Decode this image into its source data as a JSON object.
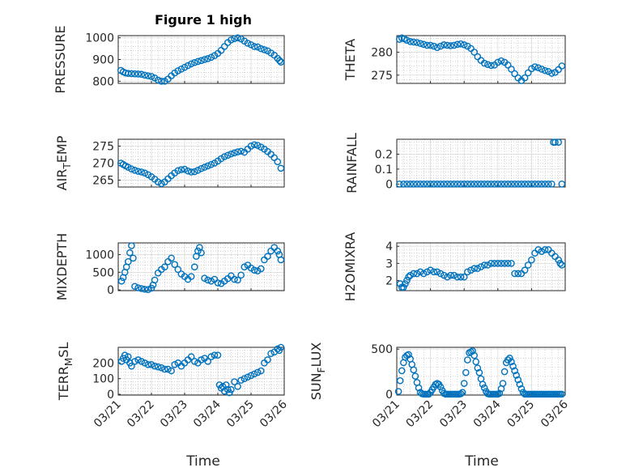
{
  "figure": {
    "title": "Figure 1 high",
    "marker_color": "#0072BD",
    "x_axis_label": "Time",
    "x_tick_labels": [
      "03/21",
      "03/22",
      "03/23",
      "03/24",
      "03/25",
      "03/26"
    ]
  },
  "chart_data": [
    {
      "type": "scatter",
      "ylabel": "PRESSURE",
      "ylim": [
        790,
        1010
      ],
      "yticks": [
        800,
        900,
        1000
      ],
      "xlim": [
        0,
        5
      ],
      "grid": "on",
      "x": [
        0.08,
        0.15,
        0.22,
        0.3,
        0.4,
        0.5,
        0.6,
        0.7,
        0.8,
        0.9,
        1.0,
        1.1,
        1.2,
        1.3,
        1.4,
        1.5,
        1.6,
        1.7,
        1.8,
        1.9,
        2.0,
        2.1,
        2.2,
        2.3,
        2.4,
        2.5,
        2.6,
        2.7,
        2.8,
        2.9,
        3.0,
        3.1,
        3.2,
        3.3,
        3.4,
        3.5,
        3.6,
        3.7,
        3.8,
        3.9,
        4.0,
        4.1,
        4.2,
        4.3,
        4.4,
        4.5,
        4.6,
        4.7,
        4.8,
        4.86,
        4.9
      ],
      "y": [
        850,
        843,
        838,
        836,
        835,
        834,
        833,
        832,
        828,
        825,
        822,
        815,
        805,
        800,
        800,
        810,
        825,
        838,
        848,
        856,
        864,
        872,
        880,
        886,
        891,
        895,
        900,
        904,
        910,
        918,
        928,
        942,
        960,
        978,
        990,
        996,
        1000,
        995,
        985,
        975,
        968,
        960,
        958,
        950,
        945,
        940,
        930,
        920,
        905,
        895,
        888
      ]
    },
    {
      "type": "scatter",
      "ylabel": "THETA",
      "ylim": [
        273.2,
        283.6
      ],
      "yticks": [
        275,
        280
      ],
      "xlim": [
        0,
        5
      ],
      "grid": "on",
      "x": [
        0.08,
        0.15,
        0.22,
        0.3,
        0.4,
        0.5,
        0.6,
        0.7,
        0.8,
        0.9,
        1.0,
        1.1,
        1.2,
        1.3,
        1.4,
        1.5,
        1.6,
        1.7,
        1.8,
        1.9,
        2.0,
        2.1,
        2.2,
        2.3,
        2.4,
        2.5,
        2.6,
        2.7,
        2.8,
        2.9,
        3.0,
        3.1,
        3.2,
        3.3,
        3.4,
        3.5,
        3.6,
        3.7,
        3.8,
        3.9,
        4.0,
        4.1,
        4.2,
        4.3,
        4.4,
        4.5,
        4.6,
        4.7,
        4.8,
        4.9
      ],
      "y": [
        282.8,
        283.1,
        282.9,
        282.6,
        282.3,
        282.2,
        282.1,
        281.9,
        281.7,
        281.5,
        281.5,
        281.3,
        281.0,
        281.3,
        281.6,
        281.5,
        281.4,
        281.5,
        281.7,
        281.8,
        281.6,
        281.3,
        280.8,
        280.0,
        279.0,
        278.2,
        277.6,
        277.3,
        277.1,
        277.2,
        277.8,
        278.1,
        277.8,
        277.2,
        276.3,
        275.3,
        274.4,
        273.8,
        274.4,
        275.5,
        276.4,
        276.8,
        276.6,
        276.3,
        276.0,
        275.8,
        275.4,
        275.6,
        276.2,
        277.0
      ]
    },
    {
      "type": "scatter",
      "ylabel": "AIR_TEMP",
      "ylim": [
        263,
        277
      ],
      "yticks": [
        265,
        270,
        275
      ],
      "xlim": [
        0,
        5
      ],
      "grid": "on",
      "x": [
        0.08,
        0.15,
        0.22,
        0.3,
        0.4,
        0.5,
        0.6,
        0.7,
        0.8,
        0.9,
        1.0,
        1.1,
        1.2,
        1.3,
        1.4,
        1.5,
        1.6,
        1.7,
        1.8,
        1.9,
        2.0,
        2.1,
        2.2,
        2.3,
        2.4,
        2.5,
        2.6,
        2.7,
        2.8,
        2.9,
        3.0,
        3.1,
        3.2,
        3.3,
        3.4,
        3.5,
        3.6,
        3.7,
        3.8,
        3.9,
        4.0,
        4.1,
        4.2,
        4.3,
        4.4,
        4.5,
        4.6,
        4.7,
        4.8,
        4.9
      ],
      "y": [
        270.0,
        269.6,
        269.2,
        268.8,
        268.3,
        267.9,
        267.6,
        267.4,
        267.1,
        266.6,
        266.0,
        265.3,
        264.5,
        264.0,
        264.5,
        265.4,
        266.3,
        267.1,
        267.8,
        268.1,
        268.2,
        267.7,
        267.4,
        267.5,
        267.9,
        268.4,
        268.8,
        269.2,
        269.6,
        270.0,
        270.6,
        271.3,
        271.9,
        272.3,
        272.7,
        273.0,
        273.3,
        273.5,
        273.2,
        274.1,
        275.0,
        275.4,
        275.2,
        274.7,
        274.1,
        273.4,
        272.6,
        271.6,
        270.4,
        268.5
      ]
    },
    {
      "type": "scatter",
      "ylabel": "RAINFALL",
      "ylim": [
        -0.02,
        0.3
      ],
      "yticks": [
        0,
        0.1,
        0.2
      ],
      "ytick_labels": [
        "0",
        "0.1",
        "0.2"
      ],
      "xlim": [
        0,
        5
      ],
      "grid": "on",
      "x": [
        0.08,
        0.2,
        0.3,
        0.4,
        0.5,
        0.6,
        0.7,
        0.8,
        0.9,
        1.0,
        1.1,
        1.2,
        1.3,
        1.4,
        1.5,
        1.6,
        1.7,
        1.8,
        1.9,
        2.0,
        2.1,
        2.2,
        2.3,
        2.4,
        2.5,
        2.6,
        2.7,
        2.8,
        2.9,
        3.0,
        3.1,
        3.2,
        3.3,
        3.4,
        3.5,
        3.6,
        3.7,
        3.8,
        3.9,
        4.0,
        4.1,
        4.2,
        4.3,
        4.4,
        4.5,
        4.6,
        4.65,
        4.7,
        4.8,
        4.9
      ],
      "y": [
        0,
        0,
        0,
        0,
        0,
        0,
        0,
        0,
        0,
        0,
        0,
        0,
        0,
        0,
        0,
        0,
        0,
        0,
        0,
        0,
        0,
        0,
        0,
        0,
        0,
        0,
        0,
        0,
        0,
        0,
        0,
        0,
        0,
        0,
        0,
        0,
        0,
        0,
        0,
        0,
        0,
        0,
        0,
        0,
        0,
        0,
        0.28,
        0.28,
        0.28,
        0
      ]
    },
    {
      "type": "scatter",
      "ylabel": "MIXDEPTH",
      "ylim": [
        -20,
        1330
      ],
      "yticks": [
        0,
        500,
        1000
      ],
      "xlim": [
        0,
        5
      ],
      "grid": "on",
      "x": [
        0.1,
        0.15,
        0.2,
        0.25,
        0.3,
        0.35,
        0.4,
        0.45,
        0.5,
        0.6,
        0.7,
        0.8,
        0.9,
        1.0,
        1.05,
        1.1,
        1.2,
        1.3,
        1.4,
        1.5,
        1.6,
        1.7,
        1.8,
        1.9,
        2.0,
        2.1,
        2.2,
        2.3,
        2.35,
        2.4,
        2.45,
        2.5,
        2.6,
        2.7,
        2.8,
        2.9,
        3.0,
        3.1,
        3.2,
        3.3,
        3.4,
        3.5,
        3.6,
        3.7,
        3.8,
        3.9,
        4.0,
        4.1,
        4.2,
        4.3,
        4.4,
        4.5,
        4.6,
        4.7,
        4.8,
        4.85,
        4.9
      ],
      "y": [
        250,
        350,
        500,
        650,
        800,
        1050,
        1250,
        900,
        100,
        60,
        40,
        20,
        10,
        50,
        140,
        280,
        480,
        580,
        650,
        800,
        900,
        720,
        580,
        450,
        380,
        300,
        380,
        650,
        950,
        1100,
        1200,
        1050,
        330,
        280,
        250,
        300,
        200,
        180,
        250,
        320,
        400,
        300,
        280,
        420,
        650,
        700,
        620,
        560,
        540,
        600,
        850,
        950,
        1100,
        1200,
        1100,
        1000,
        850
      ]
    },
    {
      "type": "scatter",
      "ylabel": "H2OMIXRA",
      "ylim": [
        1.4,
        4.2
      ],
      "yticks": [
        2,
        3,
        4
      ],
      "xlim": [
        0,
        5
      ],
      "grid": "on",
      "x": [
        0.1,
        0.15,
        0.2,
        0.25,
        0.3,
        0.35,
        0.4,
        0.5,
        0.6,
        0.7,
        0.8,
        0.9,
        1.0,
        1.1,
        1.2,
        1.3,
        1.4,
        1.5,
        1.6,
        1.7,
        1.8,
        1.9,
        2.0,
        2.1,
        2.2,
        2.3,
        2.4,
        2.5,
        2.6,
        2.7,
        2.8,
        2.9,
        3.0,
        3.1,
        3.2,
        3.3,
        3.4,
        3.5,
        3.6,
        3.7,
        3.8,
        3.9,
        4.0,
        4.1,
        4.2,
        4.3,
        4.4,
        4.5,
        4.6,
        4.7,
        4.8,
        4.85,
        4.9
      ],
      "y": [
        1.8,
        1.6,
        1.6,
        1.8,
        2.0,
        2.2,
        2.3,
        2.4,
        2.4,
        2.5,
        2.4,
        2.5,
        2.6,
        2.5,
        2.5,
        2.4,
        2.3,
        2.2,
        2.3,
        2.3,
        2.2,
        2.2,
        2.2,
        2.5,
        2.6,
        2.7,
        2.7,
        2.8,
        2.9,
        2.9,
        3.0,
        3.0,
        3.0,
        3.0,
        3.0,
        3.0,
        3.0,
        2.4,
        2.4,
        2.4,
        2.6,
        2.9,
        3.2,
        3.6,
        3.8,
        3.7,
        3.8,
        3.8,
        3.6,
        3.4,
        3.2,
        3.0,
        2.9
      ]
    },
    {
      "type": "scatter",
      "ylabel": "TERR_MSL",
      "ylim": [
        -5,
        300
      ],
      "yticks": [
        0,
        100,
        200
      ],
      "xlim": [
        0,
        5
      ],
      "grid": "on",
      "x": [
        0.1,
        0.15,
        0.2,
        0.25,
        0.3,
        0.35,
        0.4,
        0.5,
        0.6,
        0.7,
        0.8,
        0.9,
        1.0,
        1.1,
        1.2,
        1.3,
        1.4,
        1.5,
        1.6,
        1.7,
        1.8,
        1.9,
        2.0,
        2.1,
        2.2,
        2.3,
        2.4,
        2.5,
        2.6,
        2.7,
        2.8,
        2.9,
        3.0,
        3.05,
        3.1,
        3.15,
        3.2,
        3.25,
        3.3,
        3.35,
        3.4,
        3.5,
        3.6,
        3.7,
        3.8,
        3.9,
        4.0,
        4.1,
        4.2,
        4.3,
        4.4,
        4.5,
        4.6,
        4.7,
        4.8,
        4.85,
        4.9
      ],
      "y": [
        210,
        230,
        250,
        220,
        240,
        200,
        180,
        210,
        220,
        210,
        200,
        190,
        190,
        180,
        175,
        170,
        160,
        160,
        150,
        190,
        200,
        180,
        200,
        220,
        240,
        210,
        200,
        220,
        230,
        210,
        240,
        250,
        250,
        60,
        40,
        50,
        20,
        60,
        30,
        10,
        30,
        80,
        50,
        90,
        100,
        110,
        120,
        130,
        140,
        150,
        200,
        220,
        260,
        270,
        290,
        280,
        300
      ]
    },
    {
      "type": "scatter",
      "ylabel": "SUN_FLUX",
      "ylim": [
        -10,
        520
      ],
      "yticks": [
        0,
        500
      ],
      "xlim": [
        0,
        5
      ],
      "grid": "on",
      "x": [
        0.05,
        0.1,
        0.15,
        0.2,
        0.25,
        0.3,
        0.35,
        0.4,
        0.45,
        0.5,
        0.55,
        0.6,
        0.65,
        0.7,
        0.75,
        0.8,
        0.85,
        0.9,
        0.95,
        1.0,
        1.05,
        1.1,
        1.15,
        1.2,
        1.25,
        1.3,
        1.35,
        1.4,
        1.45,
        1.5,
        1.55,
        1.6,
        1.65,
        1.7,
        1.75,
        1.8,
        1.85,
        1.9,
        1.95,
        2.0,
        2.05,
        2.1,
        2.15,
        2.2,
        2.25,
        2.3,
        2.35,
        2.4,
        2.45,
        2.5,
        2.55,
        2.6,
        2.65,
        2.7,
        2.75,
        2.8,
        2.85,
        2.9,
        2.95,
        3.0,
        3.05,
        3.1,
        3.15,
        3.2,
        3.25,
        3.3,
        3.35,
        3.4,
        3.45,
        3.5,
        3.55,
        3.6,
        3.65,
        3.7,
        3.75,
        3.8,
        3.85,
        3.9,
        3.95,
        4.0,
        4.05,
        4.1,
        4.15,
        4.2,
        4.25,
        4.3,
        4.35,
        4.4,
        4.45,
        4.5,
        4.55,
        4.6,
        4.65,
        4.7,
        4.75,
        4.8,
        4.85,
        4.9
      ],
      "y": [
        30,
        150,
        260,
        350,
        410,
        430,
        440,
        390,
        330,
        270,
        200,
        130,
        70,
        20,
        5,
        0,
        0,
        0,
        0,
        20,
        50,
        80,
        110,
        120,
        110,
        80,
        40,
        10,
        0,
        0,
        0,
        0,
        0,
        0,
        0,
        0,
        0,
        5,
        20,
        120,
        240,
        380,
        460,
        470,
        480,
        430,
        360,
        290,
        240,
        170,
        110,
        70,
        30,
        5,
        0,
        0,
        0,
        0,
        0,
        0,
        10,
        60,
        120,
        250,
        350,
        380,
        400,
        360,
        310,
        260,
        210,
        160,
        110,
        60,
        20,
        0,
        0,
        0,
        0,
        0,
        0,
        0,
        0,
        0,
        0,
        0,
        0,
        0,
        0,
        0,
        0,
        0,
        0,
        0,
        0,
        0,
        0,
        0
      ]
    }
  ]
}
